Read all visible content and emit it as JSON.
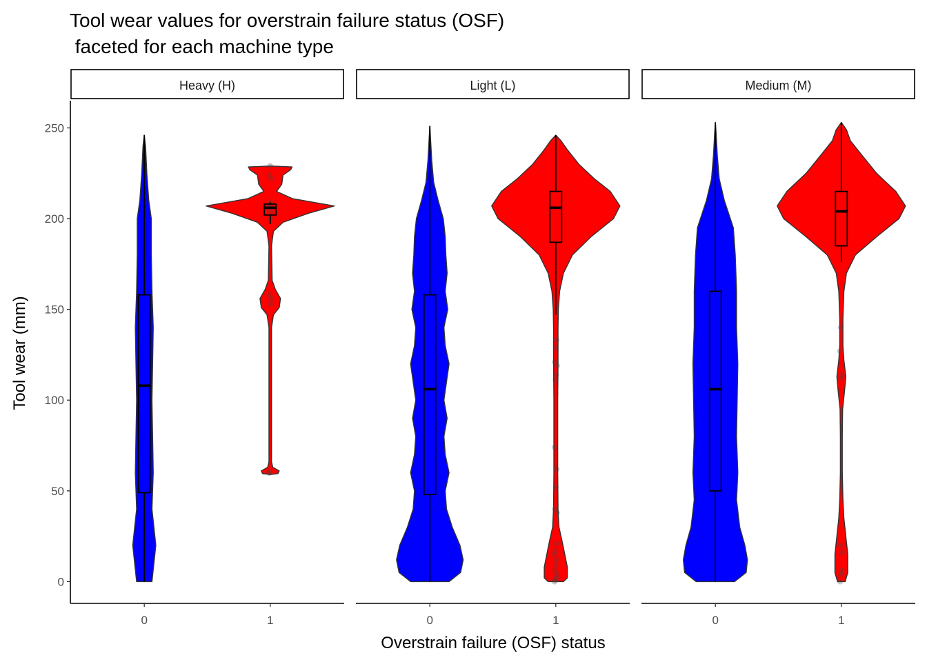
{
  "chart_data": {
    "type": "violin",
    "title_line1": "Tool wear values for overstrain failure status (OSF)",
    "title_line2": " faceted for each machine type",
    "xlabel": "Overstrain failure (OSF) status",
    "ylabel": "Tool wear (mm)",
    "ylim": [
      -12,
      265
    ],
    "yticks": [
      0,
      50,
      100,
      150,
      200,
      250
    ],
    "categories": [
      "0",
      "1"
    ],
    "colors": {
      "0": "#0000ff",
      "1": "#ff0000"
    },
    "legend": "none",
    "grid": false,
    "panels": [
      {
        "label": "Heavy (H)",
        "groups": [
          {
            "category": "0",
            "box": {
              "q1": 49,
              "median": 108,
              "q3": 158,
              "lower": 0,
              "upper": 246
            },
            "points": [],
            "violin": [
              [
                0,
                0.12
              ],
              [
                20,
                0.18
              ],
              [
                40,
                0.12
              ],
              [
                60,
                0.14
              ],
              [
                80,
                0.13
              ],
              [
                100,
                0.12
              ],
              [
                120,
                0.13
              ],
              [
                140,
                0.14
              ],
              [
                160,
                0.12
              ],
              [
                180,
                0.11
              ],
              [
                200,
                0.11
              ],
              [
                210,
                0.07
              ],
              [
                225,
                0.04
              ],
              [
                240,
                0.02
              ],
              [
                246,
                0.0
              ]
            ]
          },
          {
            "category": "1",
            "box": {
              "q1": 202,
              "median": 206,
              "q3": 208,
              "lower": 197,
              "upper": 209
            },
            "points": [
              60,
              60,
              153,
              156,
              158,
              200,
              204,
              206,
              207,
              209,
              222,
              224,
              229
            ],
            "violin": [
              [
                59,
                0.0
              ],
              [
                59.5,
                0.12
              ],
              [
                61,
                0.14
              ],
              [
                63,
                0.04
              ],
              [
                66,
                0.02
              ],
              [
                80,
                0.02
              ],
              [
                140,
                0.02
              ],
              [
                147,
                0.05
              ],
              [
                151,
                0.14
              ],
              [
                156,
                0.16
              ],
              [
                161,
                0.08
              ],
              [
                166,
                0.03
              ],
              [
                185,
                0.02
              ],
              [
                193,
                0.05
              ],
              [
                198,
                0.2
              ],
              [
                203,
                0.6
              ],
              [
                207,
                1.0
              ],
              [
                211,
                0.35
              ],
              [
                215,
                0.1
              ],
              [
                219,
                0.18
              ],
              [
                224,
                0.2
              ],
              [
                227,
                0.32
              ],
              [
                228.5,
                0.34
              ],
              [
                229,
                0.0
              ]
            ]
          }
        ]
      },
      {
        "label": "Light (L)",
        "groups": [
          {
            "category": "0",
            "box": {
              "q1": 48,
              "median": 106,
              "q3": 158,
              "lower": 0,
              "upper": 251
            },
            "points": [],
            "violin": [
              [
                0,
                0.3
              ],
              [
                5,
                0.48
              ],
              [
                12,
                0.52
              ],
              [
                20,
                0.47
              ],
              [
                30,
                0.35
              ],
              [
                40,
                0.26
              ],
              [
                50,
                0.24
              ],
              [
                60,
                0.3
              ],
              [
                70,
                0.24
              ],
              [
                80,
                0.22
              ],
              [
                90,
                0.27
              ],
              [
                100,
                0.22
              ],
              [
                110,
                0.26
              ],
              [
                120,
                0.3
              ],
              [
                130,
                0.24
              ],
              [
                140,
                0.22
              ],
              [
                150,
                0.28
              ],
              [
                160,
                0.24
              ],
              [
                170,
                0.27
              ],
              [
                180,
                0.25
              ],
              [
                190,
                0.24
              ],
              [
                200,
                0.21
              ],
              [
                210,
                0.13
              ],
              [
                220,
                0.06
              ],
              [
                232,
                0.03
              ],
              [
                245,
                0.01
              ],
              [
                251,
                0.0
              ]
            ]
          },
          {
            "category": "1",
            "box": {
              "q1": 187,
              "median": 206,
              "q3": 215,
              "lower": 147,
              "upper": 246
            },
            "points": [
              0,
              1,
              2,
              4,
              6,
              9,
              12,
              15,
              17,
              21,
              38,
              40,
              52,
              62,
              74,
              111,
              114,
              119,
              121,
              129,
              133
            ],
            "violin": [
              [
                0,
                0.12
              ],
              [
                2,
                0.18
              ],
              [
                8,
                0.18
              ],
              [
                15,
                0.14
              ],
              [
                22,
                0.1
              ],
              [
                30,
                0.05
              ],
              [
                40,
                0.035
              ],
              [
                60,
                0.03
              ],
              [
                80,
                0.03
              ],
              [
                100,
                0.03
              ],
              [
                120,
                0.035
              ],
              [
                140,
                0.035
              ],
              [
                150,
                0.04
              ],
              [
                160,
                0.06
              ],
              [
                170,
                0.12
              ],
              [
                180,
                0.26
              ],
              [
                190,
                0.55
              ],
              [
                200,
                0.9
              ],
              [
                207,
                1.0
              ],
              [
                215,
                0.85
              ],
              [
                222,
                0.6
              ],
              [
                230,
                0.36
              ],
              [
                238,
                0.18
              ],
              [
                243,
                0.08
              ],
              [
                246,
                0.0
              ]
            ]
          }
        ]
      },
      {
        "label": "Medium (M)",
        "groups": [
          {
            "category": "0",
            "box": {
              "q1": 50,
              "median": 106,
              "q3": 160,
              "lower": 0,
              "upper": 253
            },
            "points": [],
            "violin": [
              [
                0,
                0.3
              ],
              [
                5,
                0.48
              ],
              [
                12,
                0.5
              ],
              [
                20,
                0.46
              ],
              [
                30,
                0.38
              ],
              [
                45,
                0.33
              ],
              [
                60,
                0.35
              ],
              [
                80,
                0.33
              ],
              [
                100,
                0.34
              ],
              [
                120,
                0.35
              ],
              [
                140,
                0.33
              ],
              [
                160,
                0.33
              ],
              [
                180,
                0.31
              ],
              [
                195,
                0.28
              ],
              [
                210,
                0.14
              ],
              [
                222,
                0.06
              ],
              [
                235,
                0.03
              ],
              [
                248,
                0.01
              ],
              [
                253,
                0.0
              ]
            ]
          },
          {
            "category": "1",
            "box": {
              "q1": 185,
              "median": 204,
              "q3": 215,
              "lower": 176,
              "upper": 253
            },
            "points": [
              0,
              4,
              6,
              16,
              20,
              112,
              114,
              127,
              140
            ],
            "violin": [
              [
                0,
                0.06
              ],
              [
                5,
                0.1
              ],
              [
                15,
                0.1
              ],
              [
                25,
                0.07
              ],
              [
                35,
                0.04
              ],
              [
                45,
                0.025
              ],
              [
                60,
                0.015
              ],
              [
                80,
                0.015
              ],
              [
                95,
                0.02
              ],
              [
                105,
                0.05
              ],
              [
                113,
                0.07
              ],
              [
                122,
                0.04
              ],
              [
                130,
                0.025
              ],
              [
                145,
                0.025
              ],
              [
                160,
                0.04
              ],
              [
                170,
                0.08
              ],
              [
                180,
                0.22
              ],
              [
                190,
                0.55
              ],
              [
                200,
                0.9
              ],
              [
                207,
                1.0
              ],
              [
                215,
                0.85
              ],
              [
                225,
                0.55
              ],
              [
                235,
                0.32
              ],
              [
                243,
                0.14
              ],
              [
                249,
                0.08
              ],
              [
                253,
                0.0
              ]
            ]
          }
        ]
      }
    ]
  }
}
